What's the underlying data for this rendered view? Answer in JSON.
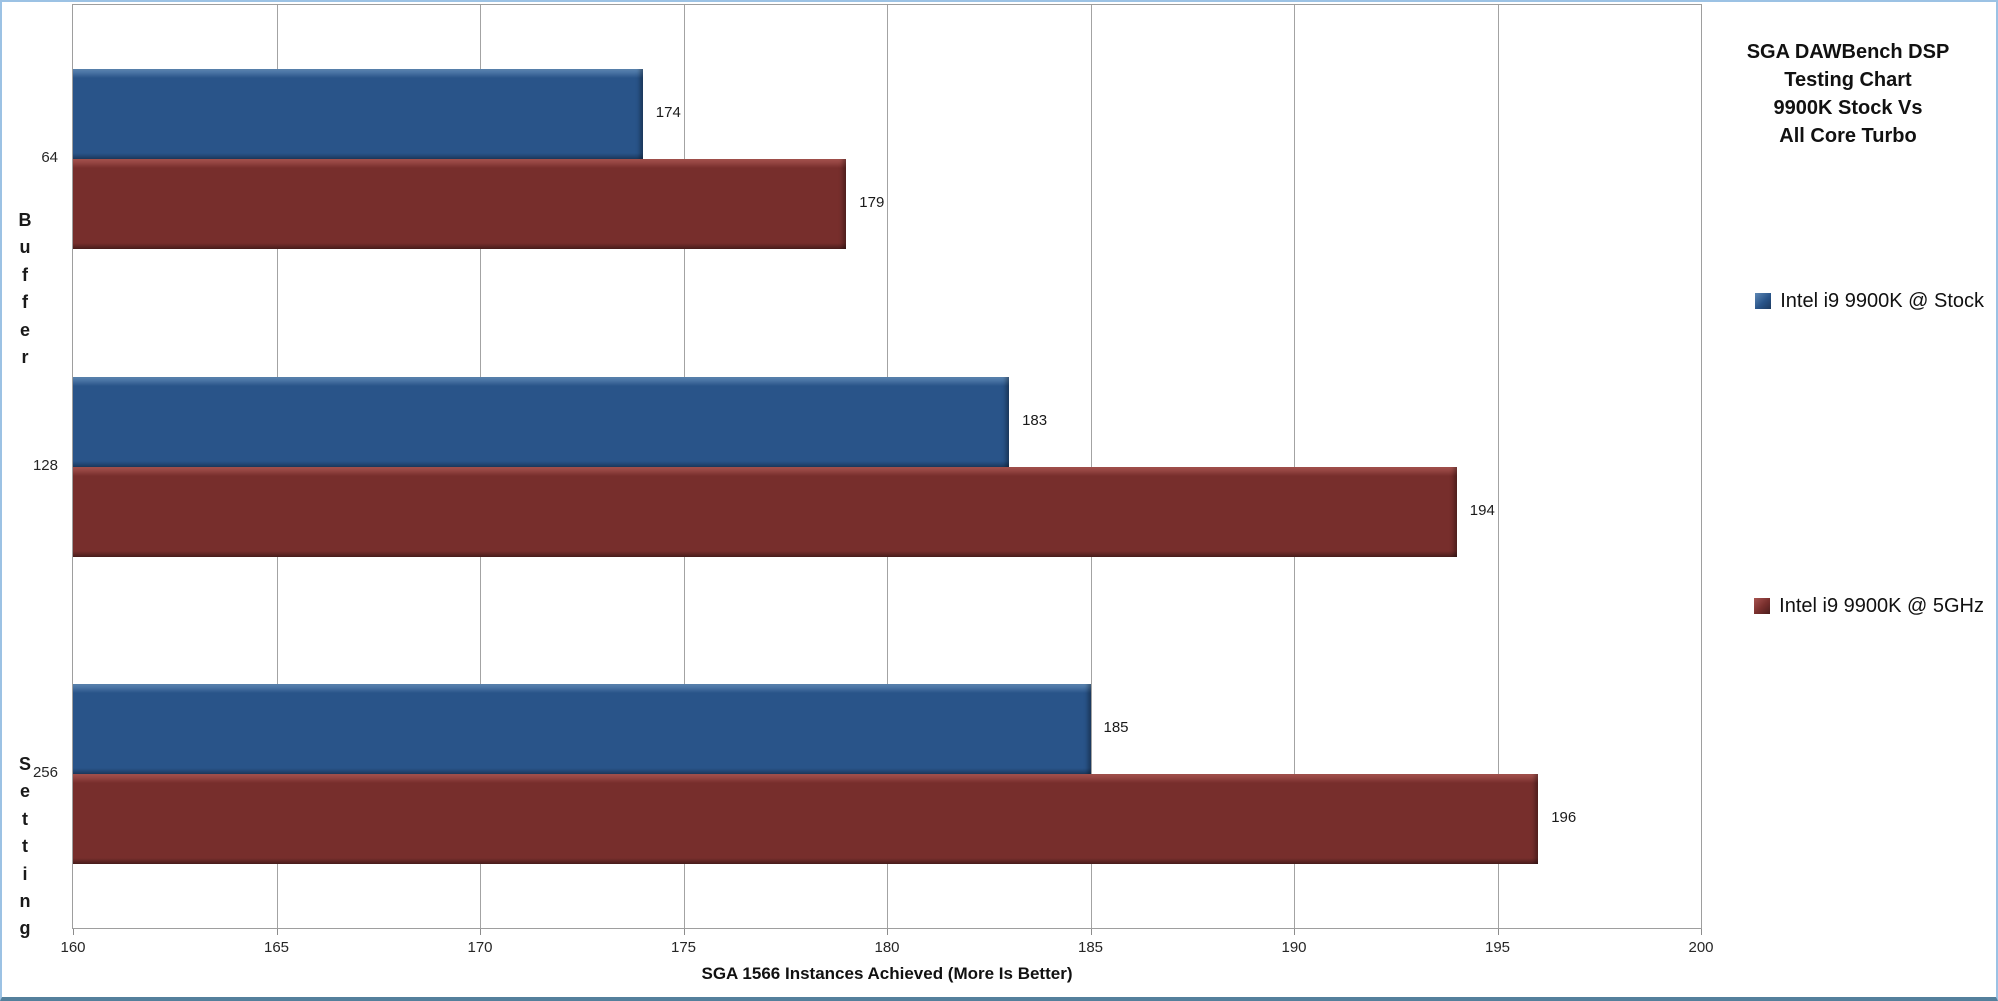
{
  "chart_data": {
    "type": "bar",
    "orientation": "horizontal",
    "title_lines": [
      "SGA DAWBench DSP",
      "Testing Chart",
      "9900K Stock Vs",
      "All Core Turbo"
    ],
    "categories": [
      "64",
      "128",
      "256"
    ],
    "series": [
      {
        "name": "Intel i9 9900K @ Stock",
        "values": [
          174,
          183,
          185
        ],
        "color": "#295489",
        "color_light": "#5e88b5",
        "color_dark": "#1d3a5f"
      },
      {
        "name": "Intel i9 9900K @ 5GHz",
        "values": [
          179,
          194,
          196
        ],
        "color": "#772e2c",
        "color_light": "#a85450",
        "color_dark": "#4a1e1d"
      }
    ],
    "xlabel": "SGA 1566 Instances Achieved (More Is Better)",
    "ylabel": "Buffer Setting",
    "xlim": [
      160,
      200
    ],
    "xticks": [
      160,
      165,
      170,
      175,
      180,
      185,
      190,
      195,
      200
    ],
    "grid": "vertical",
    "legend_position": "right",
    "colors": {
      "gridline": "#a3a3a3",
      "plot_border": "#9e9e9e",
      "outer_border": "#9cc2e4",
      "outer_border_bottom": "#54809c",
      "text": "#1a1a1a"
    }
  }
}
